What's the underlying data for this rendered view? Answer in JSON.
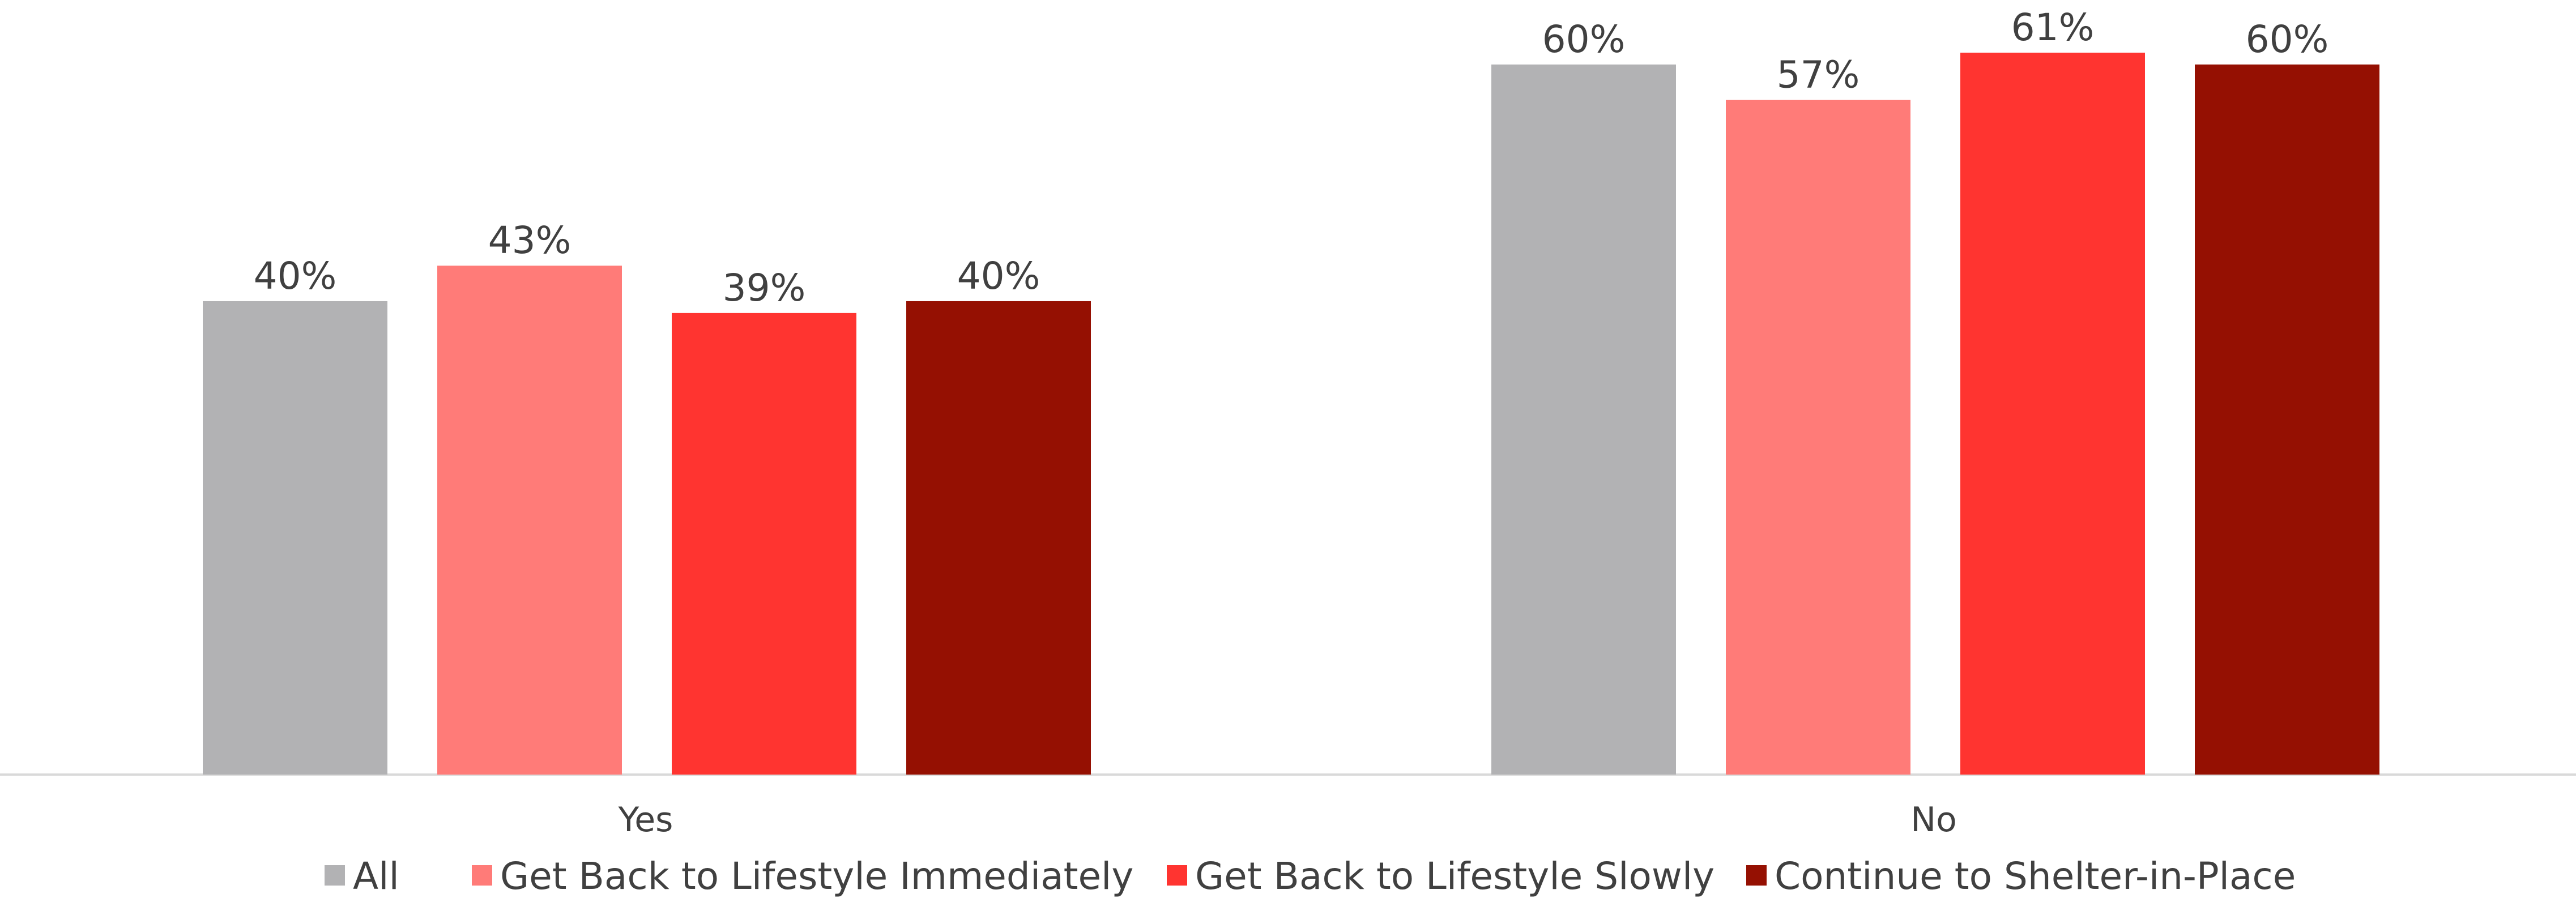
{
  "chart_data": {
    "type": "bar",
    "categories": [
      "Yes",
      "No"
    ],
    "series": [
      {
        "name": "All",
        "values": [
          40,
          60
        ],
        "labels": [
          "40%",
          "60%"
        ],
        "color": "#b2b2b4"
      },
      {
        "name": "Get Back to Lifestyle Immediately",
        "values": [
          43,
          57
        ],
        "labels": [
          "43%",
          "57%"
        ],
        "color": "#ff7b78"
      },
      {
        "name": "Get Back to Lifestyle Slowly",
        "values": [
          39,
          61
        ],
        "labels": [
          "39%",
          "61%"
        ],
        "color": "#ff3430"
      },
      {
        "name": "Continue to Shelter-in-Place",
        "values": [
          40,
          60
        ],
        "labels": [
          "40%",
          "60%"
        ],
        "color": "#951002"
      }
    ],
    "ylim": [
      0,
      61
    ],
    "unit": "%",
    "grid": false,
    "legend": "bottom",
    "axis_color": "#d9d9d9"
  }
}
